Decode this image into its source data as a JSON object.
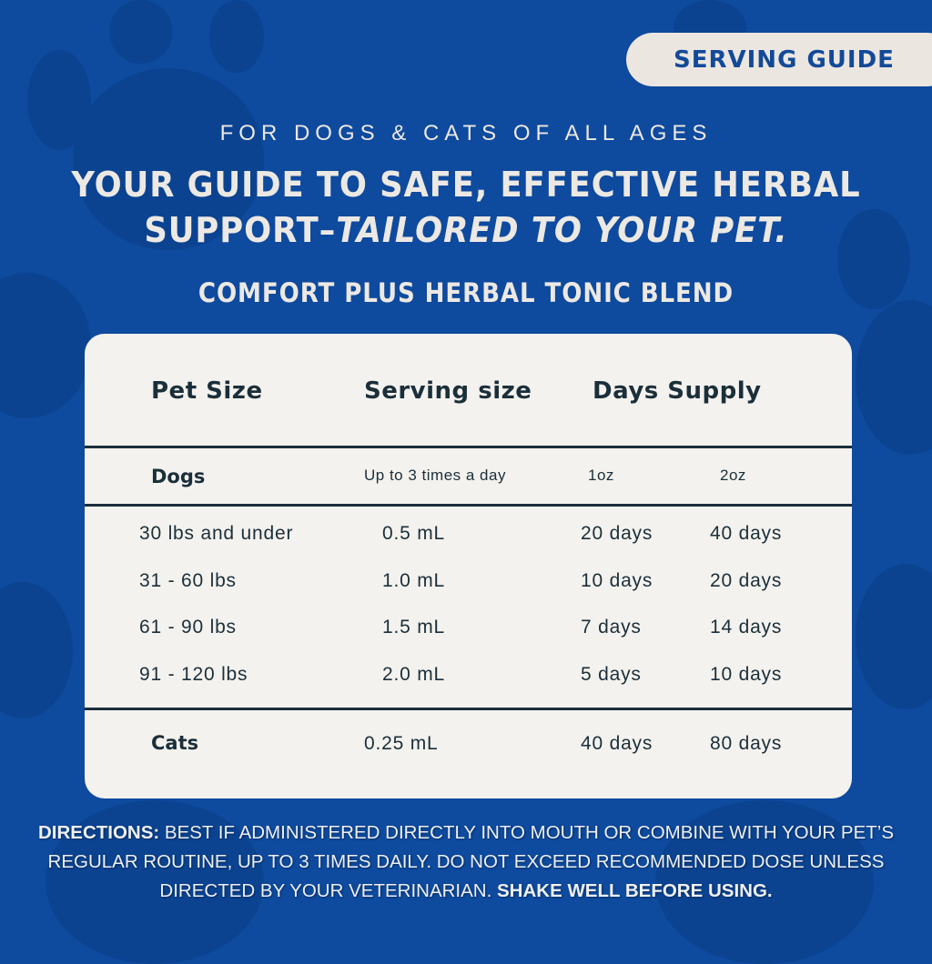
{
  "badge": "SERVING GUIDE",
  "subtitle": "FOR DOGS & CATS OF ALL AGES",
  "headline": {
    "line1": "YOUR GUIDE TO SAFE, EFFECTIVE HERBAL",
    "line2_plain": "SUPPORT–",
    "line2_italic": "TAILORED TO YOUR PET."
  },
  "product": "COMFORT PLUS HERBAL TONIC BLEND",
  "table": {
    "headers": [
      "Pet Size",
      "Serving size",
      "Days Supply"
    ],
    "dogs": {
      "label": "Dogs",
      "frequency": "Up to 3 times a day",
      "size1": "1oz",
      "size2": "2oz"
    },
    "rows": [
      [
        "30 lbs and under",
        "0.5 mL",
        "20 days",
        "40 days"
      ],
      [
        "31 - 60 lbs",
        "1.0 mL",
        "10 days",
        "20 days"
      ],
      [
        "61 - 90 lbs",
        "1.5 mL",
        "7 days",
        "14 days"
      ],
      [
        "91 - 120 lbs",
        "2.0 mL",
        "5 days",
        "10 days"
      ]
    ],
    "cats": [
      "Cats",
      "0.25 mL",
      "40 days",
      "80 days"
    ]
  },
  "directions": {
    "label": "DIRECTIONS:",
    "body": " BEST IF ADMINISTERED DIRECTLY INTO MOUTH OR COMBINE WITH YOUR PET’S REGULAR ROUTINE, UP TO 3 TIMES DAILY. DO NOT EXCEED RECOMMENDED DOSE UNLESS DIRECTED BY YOUR VETERINARIAN. ",
    "emphasis": "SHAKE WELL BEFORE USING."
  },
  "colors": {
    "background": "#0e4a9e",
    "card": "#f4f2ee",
    "text": "#1b2f3a",
    "badge": "#ece6e1"
  }
}
